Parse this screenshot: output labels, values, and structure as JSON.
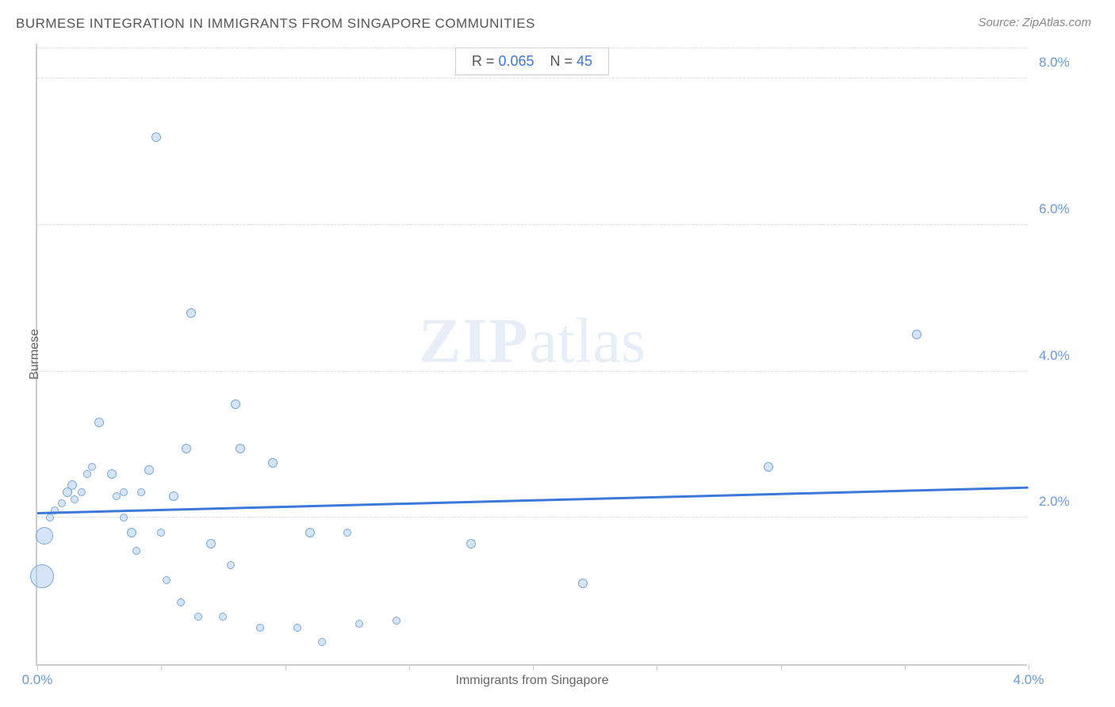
{
  "chart": {
    "title": "BURMESE INTEGRATION IN IMMIGRANTS FROM SINGAPORE COMMUNITIES",
    "source": "Source: ZipAtlas.com",
    "type": "scatter",
    "watermark_bold": "ZIP",
    "watermark_light": "atlas",
    "x_axis": {
      "label": "Immigrants from Singapore",
      "min": 0.0,
      "max": 4.0,
      "tick_step": 0.5,
      "tick_labels": {
        "0": "0.0%",
        "4": "4.0%"
      }
    },
    "y_axis": {
      "label": "Burmese",
      "min": 0.0,
      "max": 8.5,
      "gridlines": [
        2.0,
        4.0,
        6.0,
        8.0
      ],
      "tick_labels": {
        "2": "2.0%",
        "4": "4.0%",
        "6": "6.0%",
        "8": "8.0%"
      }
    },
    "colors": {
      "bubble_fill": "rgba(180,205,240,0.55)",
      "bubble_stroke": "#7aa8d8",
      "trend_line": "#3b78d8",
      "grid": "#dddddd",
      "axis": "#cccccc",
      "title_text": "#555555",
      "tick_text": "#6699dd",
      "label_text": "#666666",
      "background": "#ffffff"
    },
    "trend": {
      "y_start": 2.05,
      "y_end": 2.4
    },
    "legend": {
      "r_label": "R =",
      "r_value": "0.065",
      "n_label": "N =",
      "n_value": "45"
    },
    "points": [
      {
        "x": 0.02,
        "y": 1.2,
        "r": 30
      },
      {
        "x": 0.03,
        "y": 1.75,
        "r": 22
      },
      {
        "x": 0.05,
        "y": 2.0,
        "r": 10
      },
      {
        "x": 0.07,
        "y": 2.1,
        "r": 10
      },
      {
        "x": 0.1,
        "y": 2.2,
        "r": 10
      },
      {
        "x": 0.12,
        "y": 2.35,
        "r": 12
      },
      {
        "x": 0.14,
        "y": 2.45,
        "r": 12
      },
      {
        "x": 0.15,
        "y": 2.25,
        "r": 10
      },
      {
        "x": 0.18,
        "y": 2.35,
        "r": 10
      },
      {
        "x": 0.2,
        "y": 2.6,
        "r": 10
      },
      {
        "x": 0.22,
        "y": 2.7,
        "r": 10
      },
      {
        "x": 0.25,
        "y": 3.3,
        "r": 12
      },
      {
        "x": 0.3,
        "y": 2.6,
        "r": 12
      },
      {
        "x": 0.32,
        "y": 2.3,
        "r": 10
      },
      {
        "x": 0.35,
        "y": 2.0,
        "r": 10
      },
      {
        "x": 0.35,
        "y": 2.35,
        "r": 10
      },
      {
        "x": 0.38,
        "y": 1.8,
        "r": 12
      },
      {
        "x": 0.4,
        "y": 1.55,
        "r": 10
      },
      {
        "x": 0.42,
        "y": 2.35,
        "r": 10
      },
      {
        "x": 0.45,
        "y": 2.65,
        "r": 12
      },
      {
        "x": 0.48,
        "y": 7.2,
        "r": 12
      },
      {
        "x": 0.5,
        "y": 1.8,
        "r": 10
      },
      {
        "x": 0.52,
        "y": 1.15,
        "r": 10
      },
      {
        "x": 0.55,
        "y": 2.3,
        "r": 12
      },
      {
        "x": 0.58,
        "y": 0.85,
        "r": 10
      },
      {
        "x": 0.6,
        "y": 2.95,
        "r": 12
      },
      {
        "x": 0.62,
        "y": 4.8,
        "r": 12
      },
      {
        "x": 0.65,
        "y": 0.65,
        "r": 10
      },
      {
        "x": 0.7,
        "y": 1.65,
        "r": 12
      },
      {
        "x": 0.75,
        "y": 0.65,
        "r": 10
      },
      {
        "x": 0.78,
        "y": 1.35,
        "r": 10
      },
      {
        "x": 0.8,
        "y": 3.55,
        "r": 12
      },
      {
        "x": 0.82,
        "y": 2.95,
        "r": 12
      },
      {
        "x": 0.9,
        "y": 0.5,
        "r": 10
      },
      {
        "x": 0.95,
        "y": 2.75,
        "r": 12
      },
      {
        "x": 1.05,
        "y": 0.5,
        "r": 10
      },
      {
        "x": 1.1,
        "y": 1.8,
        "r": 12
      },
      {
        "x": 1.15,
        "y": 0.3,
        "r": 10
      },
      {
        "x": 1.25,
        "y": 1.8,
        "r": 10
      },
      {
        "x": 1.3,
        "y": 0.55,
        "r": 10
      },
      {
        "x": 1.45,
        "y": 0.6,
        "r": 10
      },
      {
        "x": 1.75,
        "y": 1.65,
        "r": 12
      },
      {
        "x": 2.2,
        "y": 1.1,
        "r": 12
      },
      {
        "x": 2.95,
        "y": 2.7,
        "r": 12
      },
      {
        "x": 3.55,
        "y": 4.5,
        "r": 12
      }
    ]
  }
}
